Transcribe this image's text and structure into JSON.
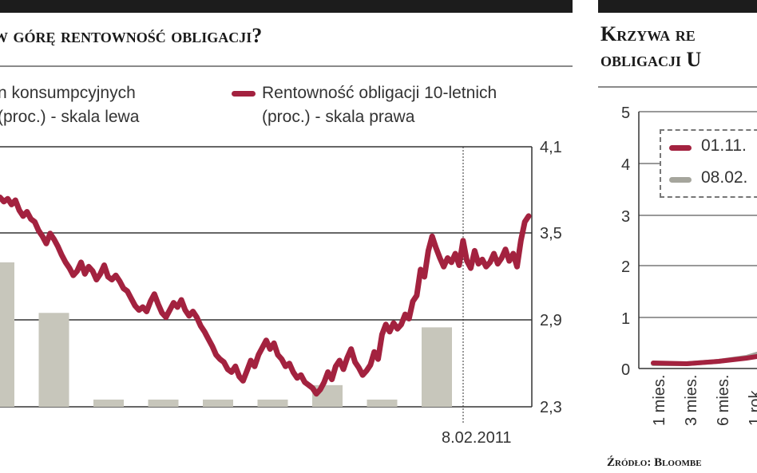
{
  "chart_data": [
    {
      "type": "bar+line",
      "title": "w górę rentowność obligacji?",
      "series": [
        {
          "name": "n konsumpcyjnych (proc.) - skala lewa",
          "type": "bar",
          "values": [
            3.3,
            2.95,
            2.35,
            2.35,
            2.35,
            2.35,
            2.45,
            2.35,
            2.85
          ]
        },
        {
          "name": "Rentowność obligacji 10-letnich (proc.) - skala prawa",
          "type": "line",
          "color": "#a3223f",
          "values": [
            3.75,
            3.72,
            3.74,
            3.7,
            3.73,
            3.66,
            3.62,
            3.65,
            3.6,
            3.58,
            3.52,
            3.48,
            3.43,
            3.5,
            3.46,
            3.41,
            3.35,
            3.3,
            3.26,
            3.21,
            3.24,
            3.3,
            3.22,
            3.27,
            3.24,
            3.18,
            3.22,
            3.28,
            3.2,
            3.18,
            3.21,
            3.17,
            3.12,
            3.1,
            3.05,
            3.0,
            2.97,
            2.99,
            2.96,
            3.03,
            3.08,
            3.01,
            2.95,
            2.92,
            2.97,
            3.02,
            2.99,
            3.04,
            2.97,
            2.93,
            2.96,
            2.92,
            2.86,
            2.82,
            2.77,
            2.72,
            2.66,
            2.63,
            2.61,
            2.56,
            2.54,
            2.58,
            2.51,
            2.48,
            2.55,
            2.62,
            2.58,
            2.66,
            2.71,
            2.76,
            2.7,
            2.74,
            2.66,
            2.63,
            2.58,
            2.6,
            2.54,
            2.5,
            2.52,
            2.47,
            2.45,
            2.43,
            2.39,
            2.42,
            2.47,
            2.54,
            2.49,
            2.58,
            2.62,
            2.56,
            2.64,
            2.7,
            2.61,
            2.57,
            2.52,
            2.55,
            2.59,
            2.68,
            2.63,
            2.8,
            2.87,
            2.82,
            2.88,
            2.84,
            2.87,
            2.94,
            2.91,
            3.03,
            3.07,
            3.25,
            3.2,
            3.38,
            3.48,
            3.4,
            3.33,
            3.27,
            3.33,
            3.3,
            3.36,
            3.28,
            3.45,
            3.31,
            3.26,
            3.38,
            3.29,
            3.32,
            3.27,
            3.3,
            3.36,
            3.29,
            3.33,
            3.39,
            3.31,
            3.36,
            3.27,
            3.45,
            3.58,
            3.62
          ]
        }
      ],
      "y_right": {
        "ticks": [
          "4,1",
          "3,5",
          "2,9",
          "2,3"
        ],
        "range": [
          2.3,
          4.1
        ]
      },
      "annotation": "8.02.2011",
      "grid": true
    },
    {
      "type": "line",
      "title": "Krzywa re obligacji U",
      "series": [
        {
          "name": "01.11.",
          "color": "#a3223f"
        },
        {
          "name": "08.02.",
          "color": "#a5a59c"
        }
      ],
      "y_left": {
        "ticks": [
          "5",
          "4",
          "3",
          "2",
          "1",
          "0"
        ],
        "range": [
          0,
          5
        ]
      },
      "x": [
        "1 mies.",
        "3 mies.",
        "6 mies.",
        "1 rok"
      ],
      "grid": true
    }
  ],
  "left_chart": {
    "title": "w górę rentowność obligacji?",
    "legend_bar_line1": "n konsumpcyjnych",
    "legend_bar_line2": "(proc.) - skala lewa",
    "legend_line_line1": "Rentowność obligacji 10-letnich",
    "legend_line_line2": "(proc.) - skala prawa",
    "line_color": "#a3223f",
    "bar_color": "#c7c6bb",
    "date_label": "8.02.2011"
  },
  "right_chart": {
    "title_line1": "Krzywa re",
    "title_line2": "obligacji U",
    "legend1": "01.11.",
    "legend2": "08.02.",
    "line1_color": "#a3223f",
    "line2_color": "#a5a59c",
    "source": "Źródło: Bloombe"
  }
}
